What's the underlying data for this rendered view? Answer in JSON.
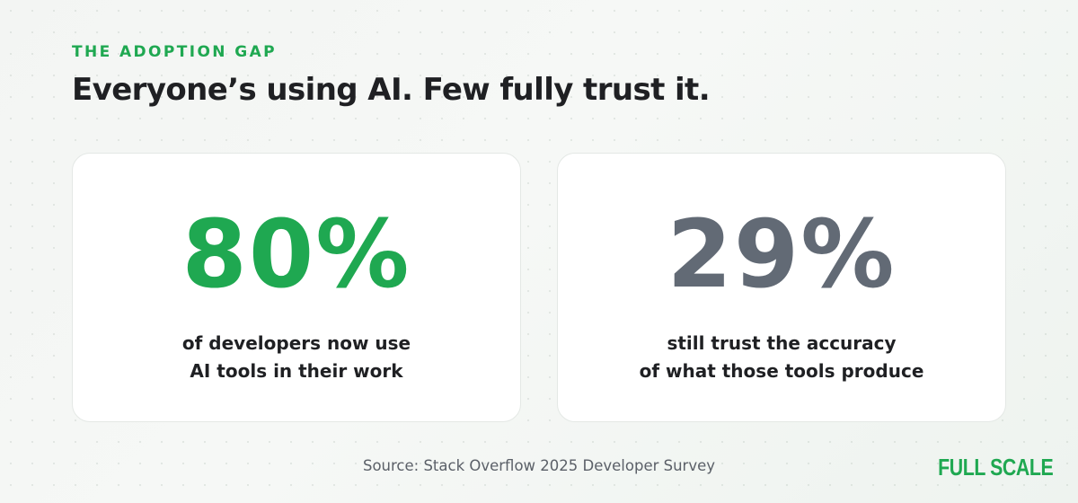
{
  "eyebrow": "THE ADOPTION GAP",
  "headline": "Everyone’s using AI. Few fully trust it.",
  "stats": [
    {
      "value": "80%",
      "line1": "of developers now use",
      "line2": "AI tools in their work"
    },
    {
      "value": "29%",
      "line1": "still trust the accuracy",
      "line2": "of what those tools produce"
    }
  ],
  "source": "Source: Stack Overflow 2025 Developer Survey",
  "logo": "FULL SCALE",
  "colors": {
    "accent_green": "#1fa851",
    "stat_gray": "#626a75",
    "headline": "#1f2023",
    "source_text": "#5b6068"
  }
}
